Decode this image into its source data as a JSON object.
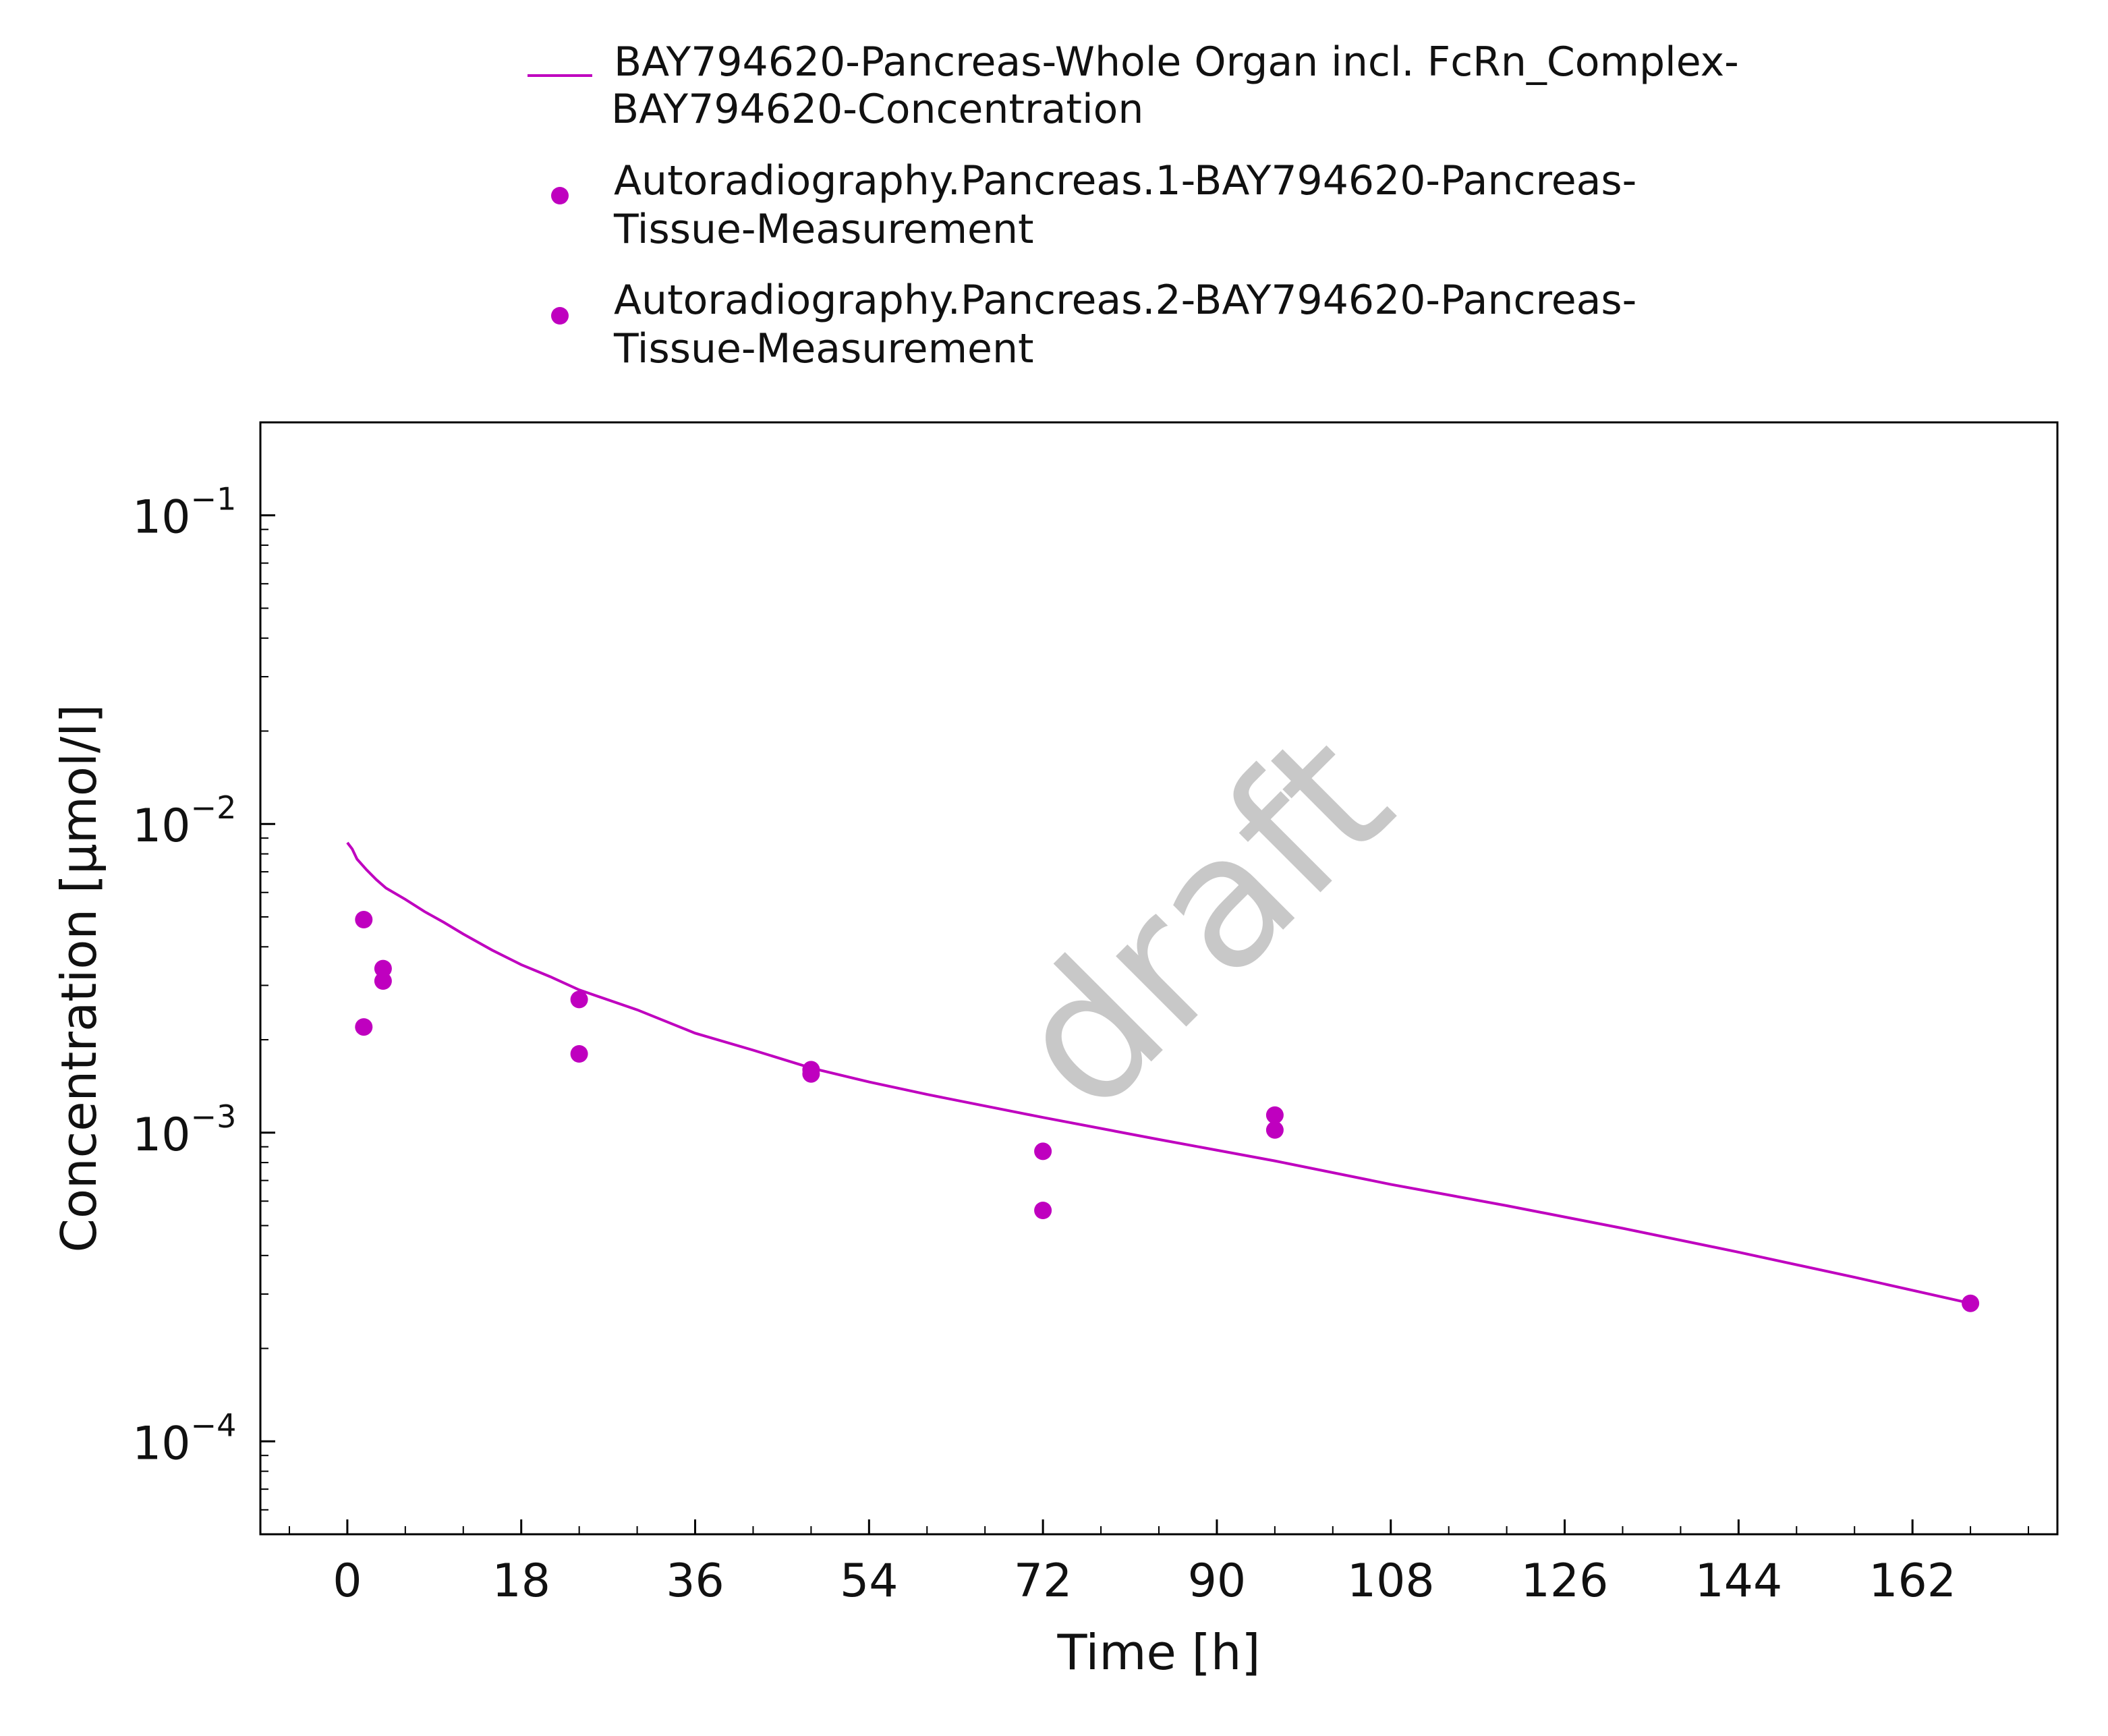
{
  "chart_data": {
    "type": "scatter",
    "xlabel": "Time [h]",
    "ylabel": "Concentration [µmol/l]",
    "xlim": [
      -9,
      177
    ],
    "ylim": [
      5e-05,
      0.2
    ],
    "yscale": "log",
    "x_ticks": [
      0,
      18,
      36,
      54,
      72,
      90,
      108,
      126,
      144,
      162
    ],
    "x_tick_labels": [
      "0",
      "18",
      "36",
      "54",
      "72",
      "90",
      "108",
      "126",
      "144",
      "162"
    ],
    "y_ticks": [
      0.0001,
      0.001,
      0.01,
      0.1
    ],
    "y_tick_labels": [
      {
        "base": "10",
        "exp": "−4"
      },
      {
        "base": "10",
        "exp": "−3"
      },
      {
        "base": "10",
        "exp": "−2"
      },
      {
        "base": "10",
        "exp": "−1"
      }
    ],
    "grid": false,
    "legend_position": "top",
    "watermark": "draft",
    "series": [
      {
        "name": "BAY794620-Pancreas-Whole Organ incl. FcRn_Complex-BAY794620-Concentration",
        "legend_lines": [
          "BAY794620-Pancreas-Whole Organ incl. FcRn_Complex-",
          "BAY794620-Concentration"
        ],
        "kind": "line",
        "color": "#bf00bf",
        "points": [
          [
            0.0,
            0.0087
          ],
          [
            0.5,
            0.0083
          ],
          [
            1.0,
            0.0077
          ],
          [
            2.0,
            0.0071
          ],
          [
            3.0,
            0.0066
          ],
          [
            4.0,
            0.0062
          ],
          [
            6.0,
            0.0057
          ],
          [
            8.0,
            0.0052
          ],
          [
            10.0,
            0.0048
          ],
          [
            12.0,
            0.0044
          ],
          [
            15.0,
            0.0039
          ],
          [
            18.0,
            0.0035
          ],
          [
            21.0,
            0.0032
          ],
          [
            24.0,
            0.0029
          ],
          [
            30.0,
            0.0025
          ],
          [
            36.0,
            0.0021
          ],
          [
            42.0,
            0.00185
          ],
          [
            48.0,
            0.00162
          ],
          [
            54.0,
            0.00146
          ],
          [
            60.0,
            0.00133
          ],
          [
            66.0,
            0.00122
          ],
          [
            72.0,
            0.00112
          ],
          [
            84.0,
            0.00095
          ],
          [
            96.0,
            0.00081
          ],
          [
            108.0,
            0.00068
          ],
          [
            120.0,
            0.00058
          ],
          [
            132.0,
            0.00049
          ],
          [
            144.0,
            0.00041
          ],
          [
            156.0,
            0.00034
          ],
          [
            168.0,
            0.00028
          ]
        ]
      },
      {
        "name": "Autoradiography.Pancreas.1-BAY794620-Pancreas-Tissue-Measurement",
        "legend_lines": [
          "Autoradiography.Pancreas.1-BAY794620-Pancreas-",
          "Tissue-Measurement"
        ],
        "kind": "scatter",
        "color": "#bf00bf",
        "points": [
          [
            1.7,
            0.0049
          ],
          [
            3.7,
            0.0034
          ],
          [
            24.0,
            0.0027
          ],
          [
            48.0,
            0.0016
          ],
          [
            72.0,
            0.00087
          ],
          [
            96.0,
            0.00114
          ],
          [
            168.0,
            0.00028
          ]
        ]
      },
      {
        "name": "Autoradiography.Pancreas.2-BAY794620-Pancreas-Tissue-Measurement",
        "legend_lines": [
          "Autoradiography.Pancreas.2-BAY794620-Pancreas-",
          "Tissue-Measurement"
        ],
        "kind": "scatter",
        "color": "#bf00bf",
        "points": [
          [
            1.7,
            0.0022
          ],
          [
            3.7,
            0.0031
          ],
          [
            24.0,
            0.0018
          ],
          [
            48.0,
            0.00155
          ],
          [
            72.0,
            0.00056
          ],
          [
            96.0,
            0.00102
          ]
        ]
      }
    ]
  }
}
